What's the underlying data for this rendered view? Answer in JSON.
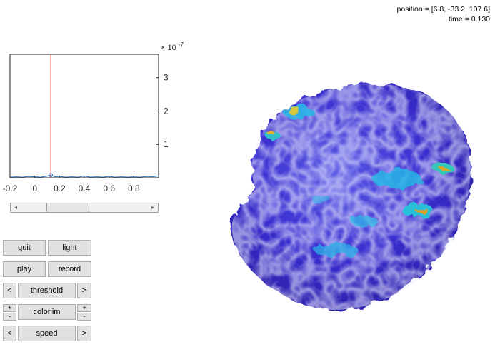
{
  "readout": {
    "position": "position = [6.8, -33.2, 107.6]",
    "time": "time = 0.130"
  },
  "chart_data": {
    "type": "line",
    "exponent_label": "× 10",
    "exponent_power": "-7",
    "x_ticks": [
      "-0.2",
      "0",
      "0.2",
      "0.4",
      "0.6",
      "0.8"
    ],
    "x_tick_values": [
      -0.2,
      0,
      0.2,
      0.4,
      0.6,
      0.8
    ],
    "y_ticks": [
      "1",
      "2",
      "3"
    ],
    "y_tick_values": [
      1,
      2,
      3
    ],
    "xlim": [
      -0.2,
      1.0
    ],
    "ylim": [
      0,
      3.7
    ],
    "cursor_x": 0.13,
    "series": [
      {
        "x": [
          -0.2,
          -0.15,
          -0.1,
          -0.05,
          0,
          0.05,
          0.1,
          0.13,
          0.16,
          0.2,
          0.25,
          0.3,
          0.35,
          0.4,
          0.45,
          0.5,
          0.55,
          0.6,
          0.65,
          0.7,
          0.75,
          0.8,
          0.85,
          0.9,
          0.95,
          1.0
        ],
        "y": [
          0.02,
          0.03,
          0.02,
          0.04,
          0.03,
          0.02,
          0.05,
          0.08,
          0.03,
          0.04,
          0.02,
          0.03,
          0.02,
          0.05,
          0.02,
          0.03,
          0.02,
          0.04,
          0.02,
          0.03,
          0.02,
          0.03,
          0.02,
          0.04,
          0.03,
          0.06
        ]
      }
    ],
    "colors": {
      "line": "#2a6db5",
      "cursor": "#e02020"
    }
  },
  "slider": {
    "value": 0.3
  },
  "buttons": {
    "quit": "quit",
    "light": "light",
    "play": "play",
    "record": "record",
    "threshold_dec": "<",
    "threshold": "threshold",
    "threshold_inc": ">",
    "colorlim_inc_left": "+",
    "colorlim_dec_left": "-",
    "colorlim": "colorlim",
    "colorlim_inc_right": "+",
    "colorlim_dec_right": "-",
    "speed_dec": "<",
    "speed": "speed",
    "speed_inc": ">"
  },
  "slider_arrows": {
    "left": "◂",
    "right": "▸"
  }
}
